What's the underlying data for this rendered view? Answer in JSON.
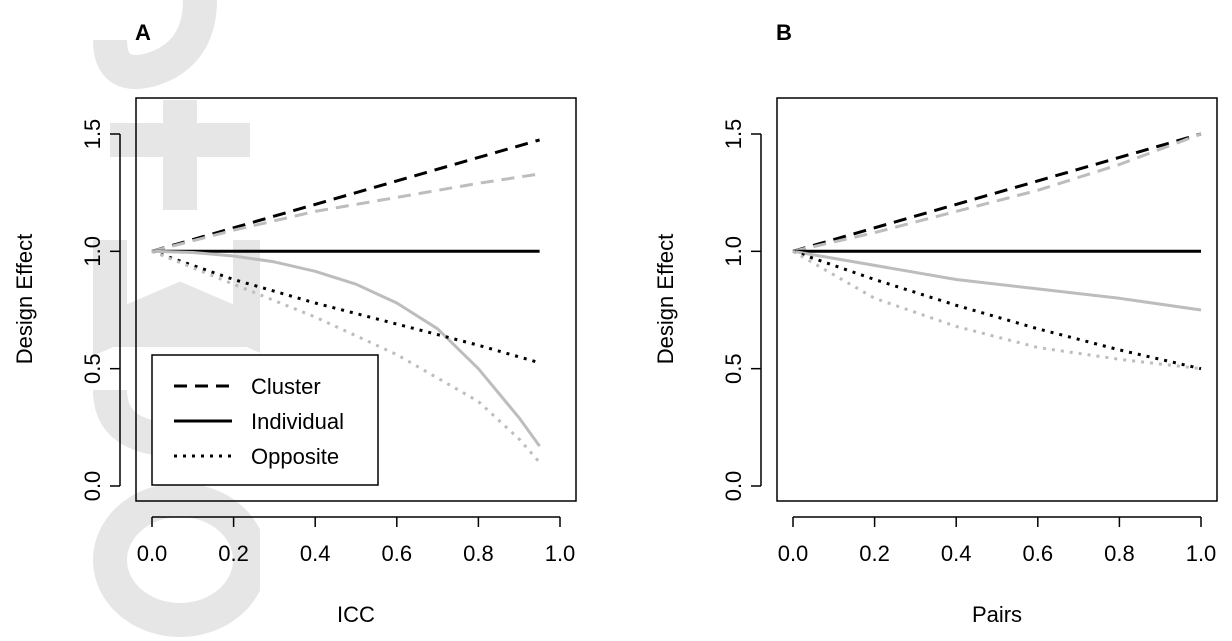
{
  "colors": {
    "black": "#000000",
    "grey": "#bdbdbd",
    "watermark": "#e6e6e6"
  },
  "legend": {
    "entries": [
      {
        "label": "Cluster",
        "style": "dashed"
      },
      {
        "label": "Individual",
        "style": "solid"
      },
      {
        "label": "Opposite",
        "style": "dotted"
      }
    ]
  },
  "chart_data": [
    {
      "type": "line",
      "panel": "A",
      "xlabel": "ICC",
      "ylabel": "Design Effect",
      "xlim": [
        0,
        1
      ],
      "ylim": [
        0,
        1.5
      ],
      "xticks": [
        "0.0",
        "0.2",
        "0.4",
        "0.6",
        "0.8",
        "1.0"
      ],
      "yticks": [
        "0.0",
        "0.5",
        "1.0",
        "1.5"
      ],
      "legend_position": "bottom-left",
      "series": [
        {
          "name": "Cluster",
          "style": "dashed",
          "color": "black",
          "x": [
            0,
            0.95
          ],
          "y": [
            1.0,
            1.475
          ]
        },
        {
          "style": "dashed",
          "color": "grey",
          "x": [
            0,
            0.2,
            0.4,
            0.6,
            0.8,
            0.95
          ],
          "y": [
            1.0,
            1.09,
            1.17,
            1.23,
            1.29,
            1.33
          ]
        },
        {
          "name": "Individual",
          "style": "solid",
          "color": "black",
          "x": [
            0,
            0.95
          ],
          "y": [
            1.0,
            1.0
          ]
        },
        {
          "style": "solid",
          "color": "grey",
          "x": [
            0,
            0.1,
            0.2,
            0.3,
            0.4,
            0.5,
            0.6,
            0.7,
            0.8,
            0.9,
            0.95
          ],
          "y": [
            1.0,
            0.995,
            0.98,
            0.955,
            0.915,
            0.86,
            0.78,
            0.67,
            0.5,
            0.29,
            0.17
          ]
        },
        {
          "name": "Opposite",
          "style": "dotted",
          "color": "black",
          "x": [
            0,
            0.2,
            0.4,
            0.6,
            0.8,
            0.95
          ],
          "y": [
            1.0,
            0.88,
            0.78,
            0.69,
            0.6,
            0.525
          ]
        },
        {
          "style": "dotted",
          "color": "grey",
          "x": [
            0,
            0.2,
            0.4,
            0.6,
            0.8,
            0.9,
            0.95
          ],
          "y": [
            1.0,
            0.86,
            0.72,
            0.56,
            0.36,
            0.2,
            0.1
          ]
        }
      ]
    },
    {
      "type": "line",
      "panel": "B",
      "xlabel": "Pairs",
      "ylabel": "Design Effect",
      "xlim": [
        0,
        1
      ],
      "ylim": [
        0,
        1.5
      ],
      "xticks": [
        "0.0",
        "0.2",
        "0.4",
        "0.6",
        "0.8",
        "1.0"
      ],
      "yticks": [
        "0.0",
        "0.5",
        "1.0",
        "1.5"
      ],
      "series": [
        {
          "style": "dashed",
          "color": "black",
          "x": [
            0,
            1
          ],
          "y": [
            1.0,
            1.5
          ]
        },
        {
          "style": "dashed",
          "color": "grey",
          "x": [
            0,
            0.2,
            0.4,
            0.6,
            0.8,
            1.0
          ],
          "y": [
            1.0,
            1.08,
            1.17,
            1.26,
            1.37,
            1.5
          ]
        },
        {
          "style": "solid",
          "color": "black",
          "x": [
            0,
            1
          ],
          "y": [
            1.0,
            1.0
          ]
        },
        {
          "style": "solid",
          "color": "grey",
          "x": [
            0,
            0.2,
            0.4,
            0.6,
            0.8,
            1.0
          ],
          "y": [
            1.0,
            0.94,
            0.88,
            0.84,
            0.8,
            0.75
          ]
        },
        {
          "style": "dotted",
          "color": "black",
          "x": [
            0,
            0.2,
            0.4,
            0.6,
            0.8,
            1.0
          ],
          "y": [
            1.0,
            0.88,
            0.77,
            0.67,
            0.58,
            0.5
          ]
        },
        {
          "style": "dotted",
          "color": "grey",
          "x": [
            0,
            0.2,
            0.4,
            0.6,
            0.8,
            1.0
          ],
          "y": [
            1.0,
            0.8,
            0.68,
            0.59,
            0.54,
            0.5
          ]
        }
      ]
    }
  ]
}
